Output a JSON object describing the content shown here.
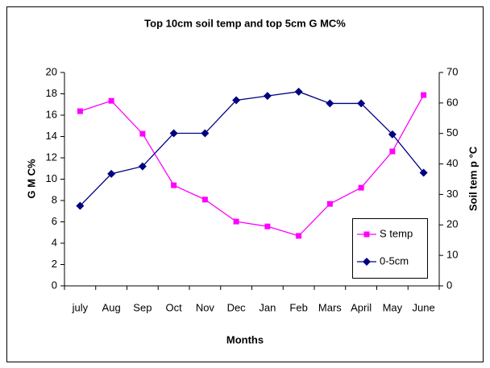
{
  "chart_data": {
    "type": "line",
    "title": "Top 10cm soil temp and top 5cm G MC%",
    "x_label": "Months",
    "y_label": "G M C%",
    "y2_label": "Soil tem p °C",
    "categories": [
      "july",
      "Aug",
      "Sep",
      "Oct",
      "Nov",
      "Dec",
      "Jan",
      "Feb",
      "Mars",
      "April",
      "May",
      "June"
    ],
    "series": [
      {
        "name": "S temp",
        "color": "#ff00ff",
        "marker": "square",
        "axis": "y2",
        "values": [
          57.3,
          60.7,
          49.9,
          33.0,
          28.3,
          21.1,
          19.5,
          16.4,
          26.9,
          32.2,
          44.1,
          62.6
        ]
      },
      {
        "name": "0-5cm",
        "color": "#000080",
        "marker": "diamond",
        "axis": "y",
        "values": [
          7.5,
          10.5,
          11.2,
          14.3,
          14.3,
          17.4,
          17.8,
          18.2,
          17.1,
          17.1,
          14.2,
          10.6
        ]
      }
    ],
    "ylim": [
      0,
      20
    ],
    "yticks": [
      0,
      2,
      4,
      6,
      8,
      10,
      12,
      14,
      16,
      18,
      20
    ],
    "y2lim": [
      0,
      70
    ],
    "y2ticks": [
      0,
      10,
      20,
      30,
      40,
      50,
      60,
      70
    ],
    "grid": false,
    "legend": "lower-right"
  }
}
